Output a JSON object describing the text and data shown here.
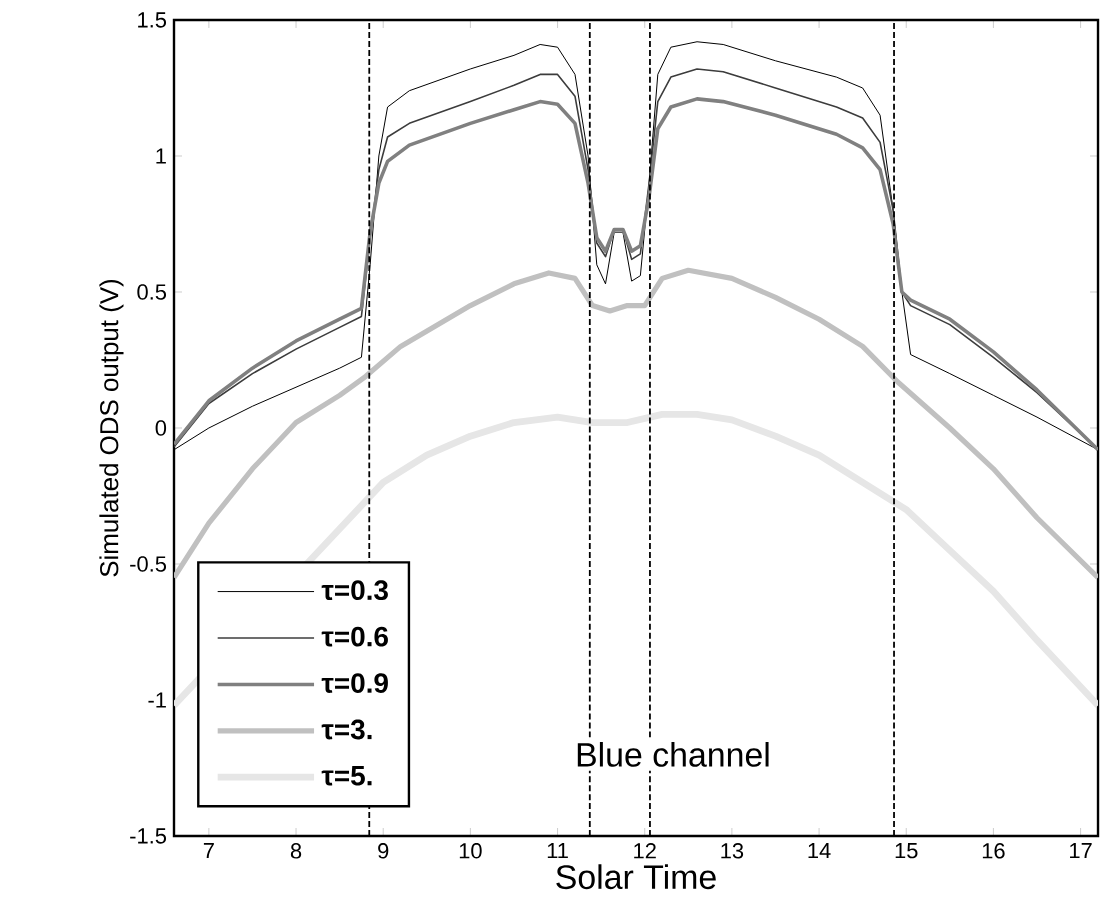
{
  "chart_data": {
    "type": "line",
    "xlabel": "Solar Time",
    "ylabel": "Simulated ODS output (V)",
    "xlim": [
      6.6,
      17.2
    ],
    "ylim": [
      -1.5,
      1.5
    ],
    "xticks": [
      7,
      8,
      9,
      10,
      11,
      12,
      13,
      14,
      15,
      16,
      17
    ],
    "yticks": [
      -1.5,
      -1,
      -0.5,
      0,
      0.5,
      1,
      1.5
    ],
    "legend": "bottom left",
    "grid": false,
    "marker": "none",
    "line_style": "solid",
    "annotations": [
      "Blue channel"
    ],
    "ref_lines": [
      {
        "axis": "x",
        "value": 8.84,
        "line_style": "dashed",
        "color": "#000000"
      },
      {
        "axis": "x",
        "value": 11.37,
        "line_style": "dashed",
        "color": "#000000"
      },
      {
        "axis": "x",
        "value": 12.06,
        "line_style": "dashed",
        "color": "#000000"
      },
      {
        "axis": "x",
        "value": 14.86,
        "line_style": "dashed",
        "color": "#000000"
      }
    ],
    "series": [
      {
        "name": "τ=0.3",
        "color": "#000000",
        "x": [
          6.6,
          7.0,
          7.5,
          8.0,
          8.5,
          8.75,
          8.85,
          8.95,
          9.05,
          9.3,
          10.0,
          10.5,
          10.8,
          11.0,
          11.2,
          11.35,
          11.45,
          11.55,
          11.65,
          11.75,
          11.85,
          11.95,
          12.05,
          12.15,
          12.3,
          12.6,
          12.9,
          13.5,
          14.2,
          14.5,
          14.7,
          14.85,
          14.95,
          15.05,
          15.5,
          16.0,
          16.5,
          17.2
        ],
        "values": [
          -0.08,
          0.0,
          0.08,
          0.15,
          0.22,
          0.26,
          0.6,
          1.0,
          1.18,
          1.24,
          1.32,
          1.37,
          1.41,
          1.4,
          1.3,
          1.0,
          0.6,
          0.53,
          0.72,
          0.72,
          0.54,
          0.56,
          0.9,
          1.3,
          1.4,
          1.42,
          1.41,
          1.35,
          1.29,
          1.25,
          1.15,
          0.8,
          0.5,
          0.27,
          0.2,
          0.12,
          0.04,
          -0.08
        ]
      },
      {
        "name": "τ=0.6",
        "color": "#3c3c3c",
        "x": [
          6.6,
          7.0,
          7.5,
          8.0,
          8.5,
          8.75,
          8.85,
          8.95,
          9.05,
          9.3,
          10.0,
          10.5,
          10.8,
          11.0,
          11.2,
          11.35,
          11.45,
          11.55,
          11.65,
          11.75,
          11.85,
          11.95,
          12.05,
          12.15,
          12.3,
          12.6,
          12.9,
          13.5,
          14.2,
          14.5,
          14.7,
          14.85,
          14.95,
          15.05,
          15.5,
          16.0,
          16.5,
          17.2
        ],
        "values": [
          -0.07,
          0.09,
          0.2,
          0.29,
          0.37,
          0.41,
          0.7,
          0.95,
          1.07,
          1.12,
          1.2,
          1.26,
          1.3,
          1.3,
          1.22,
          0.95,
          0.68,
          0.63,
          0.73,
          0.73,
          0.62,
          0.64,
          0.9,
          1.2,
          1.29,
          1.32,
          1.31,
          1.25,
          1.18,
          1.14,
          1.05,
          0.8,
          0.5,
          0.45,
          0.38,
          0.26,
          0.13,
          -0.08
        ]
      },
      {
        "name": "τ=0.9",
        "color": "#808080",
        "x": [
          6.6,
          7.0,
          7.5,
          8.0,
          8.5,
          8.75,
          8.85,
          8.95,
          9.05,
          9.3,
          10.0,
          10.5,
          10.8,
          11.0,
          11.2,
          11.35,
          11.45,
          11.55,
          11.65,
          11.75,
          11.85,
          11.95,
          12.05,
          12.15,
          12.3,
          12.6,
          12.9,
          13.5,
          14.2,
          14.5,
          14.7,
          14.85,
          14.95,
          15.05,
          15.5,
          16.0,
          16.5,
          17.2
        ],
        "values": [
          -0.06,
          0.1,
          0.22,
          0.32,
          0.4,
          0.44,
          0.72,
          0.9,
          0.98,
          1.04,
          1.12,
          1.17,
          1.2,
          1.19,
          1.12,
          0.9,
          0.7,
          0.65,
          0.73,
          0.73,
          0.65,
          0.67,
          0.85,
          1.1,
          1.18,
          1.21,
          1.2,
          1.15,
          1.08,
          1.03,
          0.95,
          0.75,
          0.5,
          0.47,
          0.4,
          0.28,
          0.14,
          -0.08
        ]
      },
      {
        "name": "τ=3.",
        "color": "#c0c0c0",
        "x": [
          6.6,
          7.0,
          7.5,
          8.0,
          8.5,
          8.8,
          9.2,
          10.0,
          10.5,
          10.9,
          11.2,
          11.4,
          11.6,
          11.8,
          12.0,
          12.2,
          12.5,
          13.0,
          13.5,
          14.0,
          14.5,
          14.9,
          15.5,
          16.0,
          16.5,
          17.2
        ],
        "values": [
          -0.55,
          -0.35,
          -0.15,
          0.02,
          0.12,
          0.19,
          0.3,
          0.45,
          0.53,
          0.57,
          0.55,
          0.45,
          0.43,
          0.45,
          0.45,
          0.55,
          0.58,
          0.55,
          0.48,
          0.4,
          0.3,
          0.17,
          0.0,
          -0.15,
          -0.33,
          -0.55
        ]
      },
      {
        "name": "τ=5.",
        "color": "#e6e6e6",
        "x": [
          6.6,
          7.0,
          7.5,
          8.0,
          8.5,
          9.0,
          9.5,
          10.0,
          10.5,
          11.0,
          11.4,
          11.8,
          12.2,
          12.6,
          13.0,
          13.5,
          14.0,
          14.5,
          15.0,
          15.5,
          16.0,
          16.5,
          17.2
        ],
        "values": [
          -1.02,
          null,
          null,
          null,
          null,
          -0.2,
          -0.1,
          -0.03,
          0.02,
          0.04,
          0.02,
          0.02,
          0.05,
          0.05,
          0.03,
          -0.03,
          -0.1,
          -0.2,
          -0.3,
          -0.45,
          -0.6,
          -0.78,
          -1.02
        ]
      }
    ]
  }
}
